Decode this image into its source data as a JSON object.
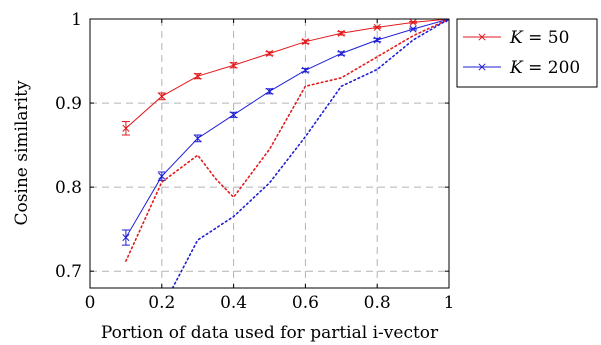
{
  "chart_data": {
    "type": "line",
    "xlabel": "Portion of data used for partial i-vector",
    "ylabel": "Cosine similarity",
    "xlim": [
      0,
      1
    ],
    "ylim": [
      0.68,
      1.0
    ],
    "x_ticks": [
      "0",
      "0.2",
      "0.4",
      "0.6",
      "0.8",
      "1"
    ],
    "y_ticks": [
      "0.7",
      "0.8",
      "0.9",
      "1"
    ],
    "grid": true,
    "legend_position": "outside-top-right",
    "series": [
      {
        "name": "K = 50",
        "color": "#e31a1c",
        "style": "solid",
        "marker": "x",
        "x": [
          0.1,
          0.2,
          0.3,
          0.4,
          0.5,
          0.6,
          0.7,
          0.8,
          0.9,
          1.0
        ],
        "y": [
          0.87,
          0.908,
          0.932,
          0.945,
          0.959,
          0.973,
          0.983,
          0.99,
          0.996,
          1.0
        ],
        "err": [
          0.008,
          0.004,
          0.003,
          0.003,
          0.002,
          0.002,
          0.002,
          0.001,
          0.001,
          0.0
        ]
      },
      {
        "name": "K = 200",
        "color": "#1f1fd6",
        "style": "solid",
        "marker": "x",
        "x": [
          0.1,
          0.2,
          0.3,
          0.4,
          0.5,
          0.6,
          0.7,
          0.8,
          0.9,
          1.0
        ],
        "y": [
          0.74,
          0.813,
          0.858,
          0.886,
          0.914,
          0.939,
          0.959,
          0.975,
          0.988,
          1.0
        ],
        "err": [
          0.009,
          0.005,
          0.004,
          0.003,
          0.003,
          0.002,
          0.002,
          0.002,
          0.001,
          0.0
        ]
      },
      {
        "color": "#e31a1c",
        "style": "dotted",
        "x": [
          0.1,
          0.2,
          0.3,
          0.35,
          0.4,
          0.5,
          0.6,
          0.7,
          0.8,
          0.9,
          1.0
        ],
        "y": [
          0.712,
          0.806,
          0.838,
          0.81,
          0.788,
          0.845,
          0.92,
          0.93,
          0.955,
          0.98,
          1.0
        ]
      },
      {
        "color": "#1f1fd6",
        "style": "dotted",
        "x": [
          0.23,
          0.3,
          0.4,
          0.5,
          0.6,
          0.7,
          0.8,
          0.9,
          1.0
        ],
        "y": [
          0.68,
          0.737,
          0.765,
          0.805,
          0.86,
          0.92,
          0.94,
          0.975,
          1.0
        ]
      }
    ],
    "legend": [
      {
        "label": "K = 50",
        "var": "K",
        "value": "50",
        "color": "#e31a1c"
      },
      {
        "label": "K = 200",
        "var": "K",
        "value": "200",
        "color": "#1f1fd6"
      }
    ]
  }
}
